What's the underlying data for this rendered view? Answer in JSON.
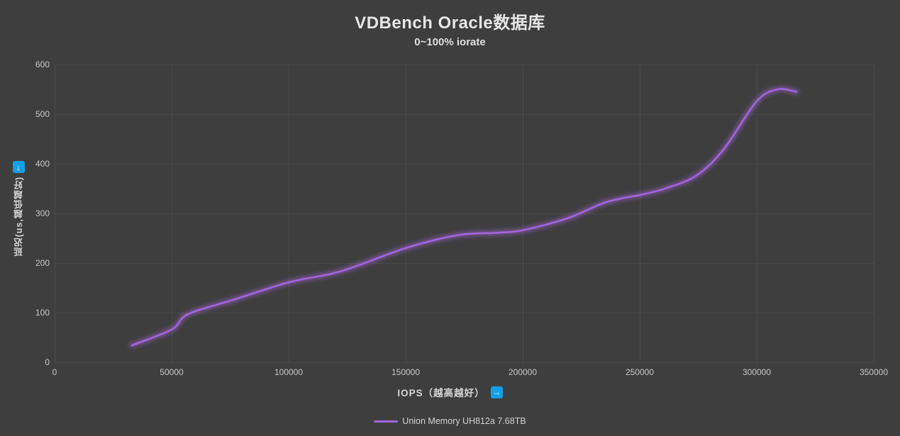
{
  "header": {
    "title": "VDBench Oracle数据库",
    "subtitle": "0~100% iorate"
  },
  "icons": {
    "y_axis": {
      "name": "down-arrow-icon",
      "glyph": "↓"
    },
    "x_axis": {
      "name": "right-arrow-icon",
      "glyph": "→"
    }
  },
  "colors": {
    "background": "#3E3E3E",
    "grid": "#4B4B4B",
    "tick_text": "#C9C9C9",
    "title_text": "#E6E6E6",
    "series": "#A365DB",
    "icon_blue": "#14A0E6"
  },
  "chart_data": {
    "type": "line",
    "title": "VDBench Oracle数据库",
    "subtitle": "0~100% iorate",
    "xlabel": "IOPS（越高越好）",
    "ylabel": "延迟(us,越低越好)",
    "xlim": [
      0,
      350000
    ],
    "ylim": [
      0,
      600
    ],
    "xticks": [
      0,
      50000,
      100000,
      150000,
      200000,
      250000,
      300000,
      350000
    ],
    "yticks": [
      0,
      100,
      200,
      300,
      400,
      500,
      600
    ],
    "grid": true,
    "legend_position": "bottom",
    "series": [
      {
        "name": "Union Memory UH812a 7.68TB",
        "color": "#A365DB",
        "points": [
          [
            33000,
            34
          ],
          [
            50000,
            66
          ],
          [
            57000,
            97
          ],
          [
            76500,
            126
          ],
          [
            100000,
            161
          ],
          [
            122000,
            183
          ],
          [
            150000,
            230
          ],
          [
            172000,
            256
          ],
          [
            189000,
            261
          ],
          [
            200000,
            266
          ],
          [
            219000,
            290
          ],
          [
            234000,
            320
          ],
          [
            243000,
            331
          ],
          [
            250000,
            337
          ],
          [
            261500,
            351
          ],
          [
            274500,
            377
          ],
          [
            286000,
            430
          ],
          [
            300000,
            526
          ],
          [
            309000,
            550
          ],
          [
            317000,
            545
          ]
        ]
      }
    ]
  }
}
